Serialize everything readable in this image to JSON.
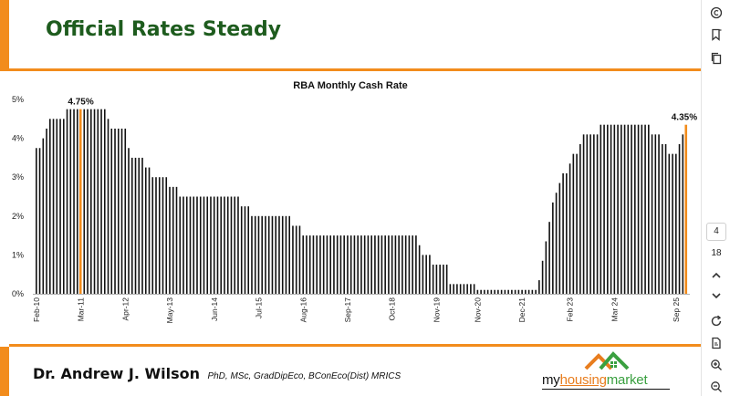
{
  "slide": {
    "title": "Official Rates Steady",
    "accent_color": "#f28c1c",
    "title_color": "#1e5c1e",
    "footer": {
      "name": "Dr. Andrew J. Wilson",
      "credentials": "PhD, MSc, GradDipEco, BConEco(Dist) MRICS"
    },
    "logo": {
      "part1": "my",
      "part2": "housing",
      "part3": "market",
      "roof_colors": [
        "#e87d1e",
        "#3aa040"
      ]
    }
  },
  "toolbar": {
    "icons": [
      "copyright-icon",
      "bookmark-icon",
      "copy-icon",
      "chevron-up-icon",
      "chevron-down-icon",
      "refresh-icon",
      "document-edit-icon",
      "zoom-in-icon",
      "zoom-out-icon"
    ],
    "page_current": "4",
    "page_total": "18"
  },
  "chart_data": {
    "type": "bar",
    "title": "RBA Monthly Cash Rate",
    "start": "2010-02",
    "end": "2025-12",
    "ylim": [
      0,
      5
    ],
    "yticks": [
      "0%",
      "1%",
      "2%",
      "3%",
      "4%",
      "5%"
    ],
    "xticks": [
      "Feb-10",
      "Mar-11",
      "Apr-12",
      "May-13",
      "Jun-14",
      "Jul-15",
      "Aug-16",
      "Sep-17",
      "Oct-18",
      "Nov-19",
      "Nov-20",
      "Dec-21",
      "Feb 23",
      "Mar 24",
      "Sep 25"
    ],
    "bar_color": "#111111",
    "highlight_color": "#f28c1c",
    "highlights": [
      {
        "date": "2011-03",
        "label": "4.75%"
      },
      {
        "date": "2025-12",
        "label": "4.35%"
      }
    ],
    "rates": [
      [
        "2010-02",
        3.75
      ],
      [
        "2010-04",
        4.0
      ],
      [
        "2010-05",
        4.25
      ],
      [
        "2010-06",
        4.5
      ],
      [
        "2010-11",
        4.75
      ],
      [
        "2011-11",
        4.5
      ],
      [
        "2011-12",
        4.25
      ],
      [
        "2012-05",
        3.75
      ],
      [
        "2012-06",
        3.5
      ],
      [
        "2012-10",
        3.25
      ],
      [
        "2012-12",
        3.0
      ],
      [
        "2013-05",
        2.75
      ],
      [
        "2013-08",
        2.5
      ],
      [
        "2015-02",
        2.25
      ],
      [
        "2015-05",
        2.0
      ],
      [
        "2016-05",
        1.75
      ],
      [
        "2016-08",
        1.5
      ],
      [
        "2019-06",
        1.25
      ],
      [
        "2019-07",
        1.0
      ],
      [
        "2019-10",
        0.75
      ],
      [
        "2020-03",
        0.25
      ],
      [
        "2020-11",
        0.1
      ],
      [
        "2022-05",
        0.35
      ],
      [
        "2022-06",
        0.85
      ],
      [
        "2022-07",
        1.35
      ],
      [
        "2022-08",
        1.85
      ],
      [
        "2022-09",
        2.35
      ],
      [
        "2022-10",
        2.6
      ],
      [
        "2022-11",
        2.85
      ],
      [
        "2022-12",
        3.1
      ],
      [
        "2023-02",
        3.35
      ],
      [
        "2023-03",
        3.6
      ],
      [
        "2023-05",
        3.85
      ],
      [
        "2023-06",
        4.1
      ],
      [
        "2023-11",
        4.35
      ],
      [
        "2025-02",
        4.1
      ],
      [
        "2025-05",
        3.85
      ],
      [
        "2025-07",
        3.6
      ],
      [
        "2025-10",
        3.85
      ],
      [
        "2025-11",
        4.1
      ],
      [
        "2025-12",
        4.35
      ]
    ]
  }
}
